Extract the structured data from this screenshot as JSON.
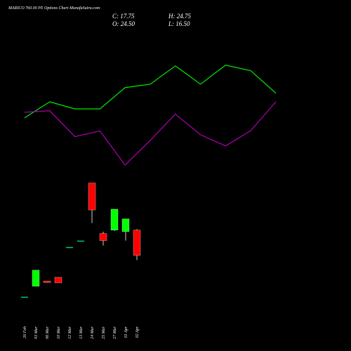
{
  "chart_data": {
    "type": "candlestick",
    "title": "MARICO 760.00 PE Options Chart MunafaSutra.com",
    "ohlc_labels": [
      "C: 17.75",
      "H: 24.75",
      "O: 24.50",
      "L: 16.50"
    ],
    "categories": [
      "26 Feb",
      "03 Mar",
      "06 Mar",
      "10 Mar",
      "12 Mar",
      "13 Mar",
      "24 Mar",
      "25 Mar",
      "27 Mar",
      "01 Apr",
      "02 Apr"
    ],
    "open": [
      6.7,
      9.5,
      10.9,
      11.9,
      20.0,
      21.7,
      37.1,
      23.6,
      24.5,
      24.1,
      24.5
    ],
    "high": [
      6.7,
      13.8,
      10.9,
      11.9,
      20.0,
      21.7,
      37.1,
      24.1,
      30.1,
      27.5,
      24.75
    ],
    "low": [
      6.7,
      9.5,
      10.5,
      10.4,
      20.0,
      21.7,
      26.4,
      20.4,
      24.3,
      21.7,
      16.5
    ],
    "close": [
      6.7,
      13.8,
      10.5,
      10.4,
      20.0,
      21.7,
      29.9,
      21.7,
      30.1,
      27.5,
      17.75
    ],
    "up_color": "#00ff00",
    "down_color": "#ff0000",
    "flat_color": "#00cc66",
    "series": [
      {
        "color": "#00ee00",
        "values": [
          54.5,
          58.8,
          56.9,
          56.9,
          62.6,
          63.5,
          68.4,
          63.5,
          68.6,
          67.1,
          61.1
        ]
      },
      {
        "color": "#b000b0",
        "values": [
          56.0,
          56.4,
          49.5,
          51.0,
          41.9,
          48.5,
          55.5,
          50.0,
          47.0,
          51.1,
          58.8
        ]
      }
    ],
    "ylim": [
      -7.8,
      86
    ]
  }
}
